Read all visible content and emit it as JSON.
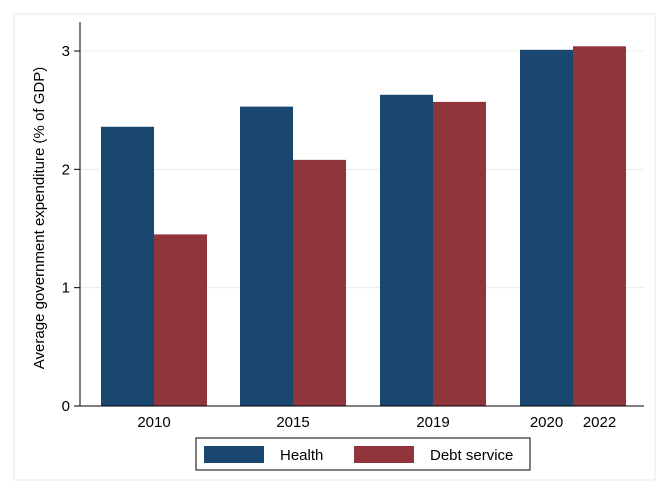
{
  "chart_data": {
    "type": "bar",
    "title": "",
    "xlabel": "",
    "ylabel": "Average government expenditure (% of GDP)",
    "ylim": [
      0,
      3.2
    ],
    "yticks": [
      0,
      1,
      2,
      3
    ],
    "grid": true,
    "legend_position": "bottom",
    "groups": [
      {
        "labels": [
          "2010"
        ],
        "values": {
          "Health": 2.36,
          "Debt service": 1.45
        }
      },
      {
        "labels": [
          "2015"
        ],
        "values": {
          "Health": 2.53,
          "Debt service": 2.08
        }
      },
      {
        "labels": [
          "2019"
        ],
        "values": {
          "Health": 2.63,
          "Debt service": 2.57
        }
      },
      {
        "labels": [
          "2020",
          "2022"
        ],
        "values": {
          "Health": 3.01,
          "Debt service": 3.04
        }
      }
    ],
    "series": [
      {
        "name": "Health",
        "color": "#1a476f"
      },
      {
        "name": "Debt service",
        "color": "#90353b"
      }
    ]
  }
}
